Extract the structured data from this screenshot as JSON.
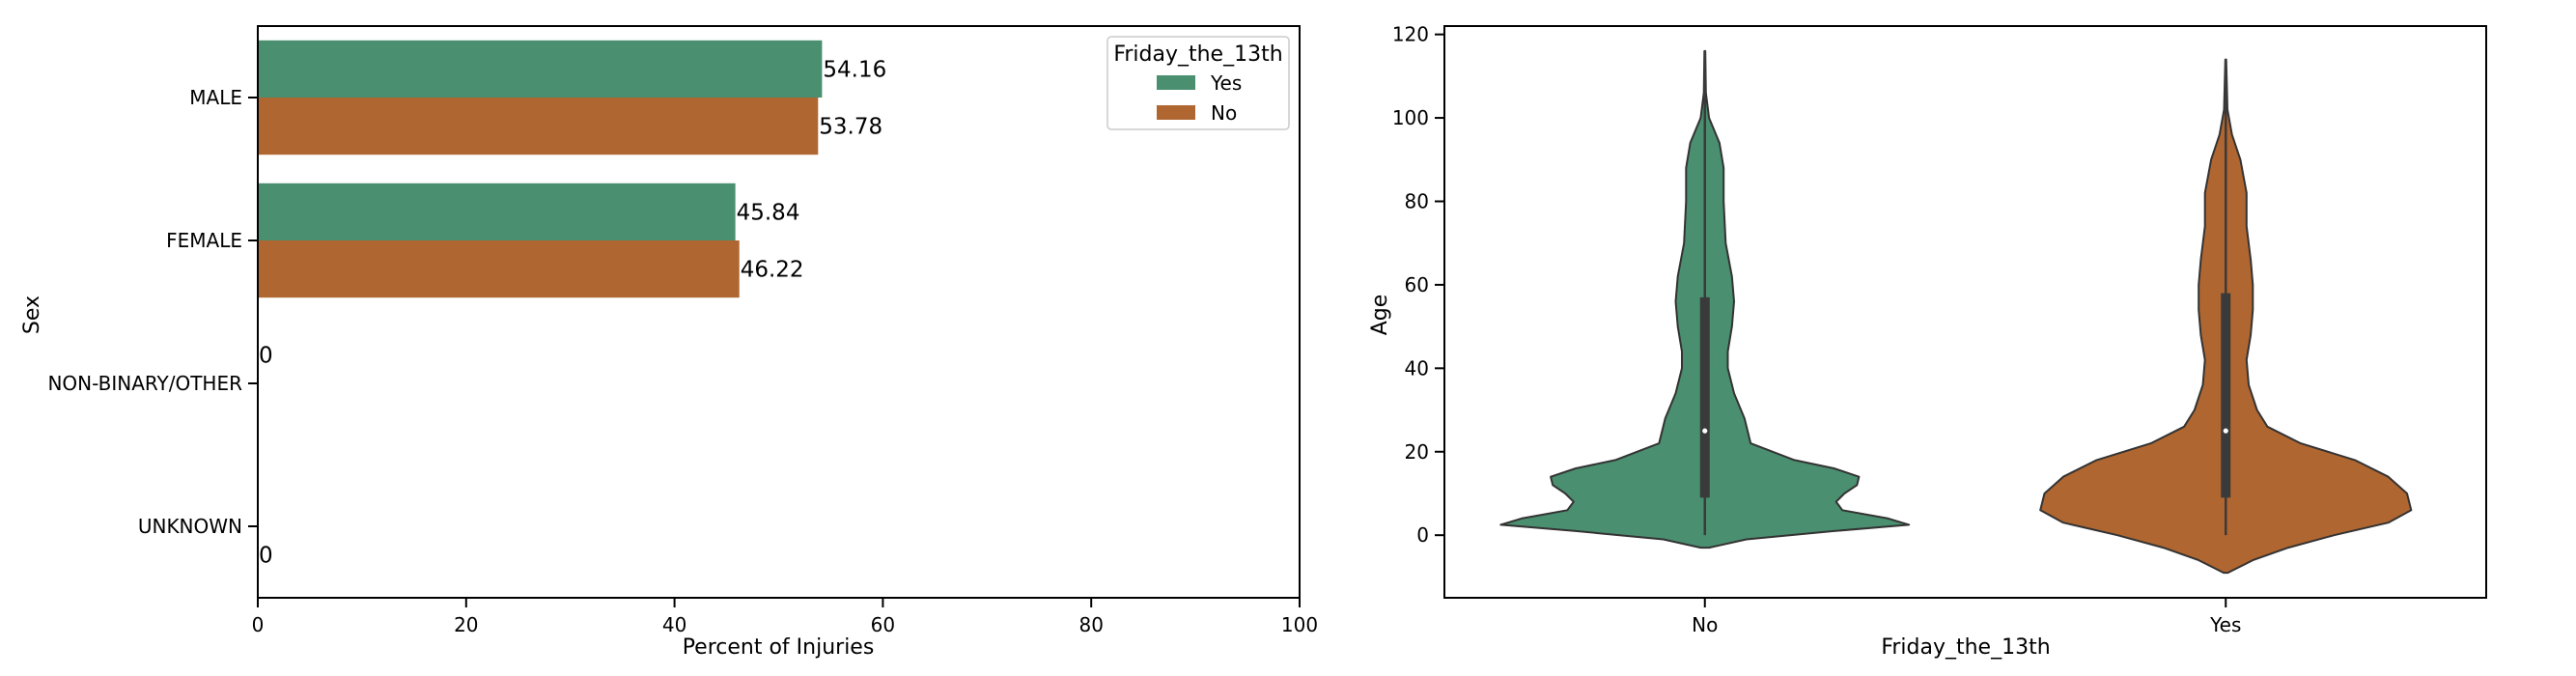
{
  "chart_data": [
    {
      "type": "bar",
      "orientation": "horizontal",
      "categories": [
        "MALE",
        "FEMALE",
        "NON-BINARY/OTHER",
        "UNKNOWN"
      ],
      "series": [
        {
          "name": "Yes",
          "values": [
            54.16,
            45.84,
            0,
            null
          ],
          "color": "#4a8f6f"
        },
        {
          "name": "No",
          "values": [
            53.78,
            46.22,
            null,
            0
          ],
          "color": "#b06630"
        }
      ],
      "data_labels": {
        "yes": [
          "54.16",
          "45.84",
          "0",
          ""
        ],
        "no": [
          "53.78",
          "46.22",
          "",
          "0"
        ]
      },
      "xlabel": "Percent of Injuries",
      "ylabel": "Sex",
      "xlim": [
        0,
        100
      ],
      "xticks": [
        "0",
        "20",
        "40",
        "60",
        "80",
        "100"
      ],
      "legend": {
        "title": "Friday_the_13th",
        "placement": "top-right",
        "entries": [
          "Yes",
          "No"
        ]
      },
      "grid": false
    },
    {
      "type": "violin",
      "categories": [
        "No",
        "Yes"
      ],
      "colors": [
        "#4a8f6f",
        "#b06630"
      ],
      "xlabel": "Friday_the_13th",
      "ylabel": "Age",
      "ylim": [
        -15,
        122
      ],
      "yticks": [
        "0",
        "20",
        "40",
        "60",
        "80",
        "100",
        "120"
      ],
      "distributions": [
        {
          "name": "No",
          "box": {
            "q1": 9,
            "median": 25,
            "q3": 57,
            "whisker_low": 0,
            "whisker_high": 116
          },
          "density": [
            [
              -3,
              0.02
            ],
            [
              -1,
              0.2
            ],
            [
              1,
              0.62
            ],
            [
              2.5,
              0.98
            ],
            [
              4,
              0.88
            ],
            [
              6,
              0.66
            ],
            [
              8,
              0.63
            ],
            [
              10,
              0.67
            ],
            [
              12,
              0.73
            ],
            [
              14,
              0.74
            ],
            [
              16,
              0.62
            ],
            [
              18,
              0.43
            ],
            [
              22,
              0.22
            ],
            [
              28,
              0.19
            ],
            [
              34,
              0.14
            ],
            [
              40,
              0.11
            ],
            [
              44,
              0.11
            ],
            [
              50,
              0.13
            ],
            [
              56,
              0.14
            ],
            [
              62,
              0.13
            ],
            [
              70,
              0.1
            ],
            [
              80,
              0.09
            ],
            [
              88,
              0.09
            ],
            [
              94,
              0.07
            ],
            [
              100,
              0.02
            ],
            [
              106,
              0.005
            ],
            [
              116,
              0.002
            ]
          ]
        },
        {
          "name": "Yes",
          "box": {
            "q1": 9,
            "median": 25,
            "q3": 58,
            "whisker_low": 0,
            "whisker_high": 114
          },
          "density": [
            [
              -9,
              0.01
            ],
            [
              -6,
              0.13
            ],
            [
              -3,
              0.3
            ],
            [
              0,
              0.52
            ],
            [
              3,
              0.78
            ],
            [
              6,
              0.89
            ],
            [
              10,
              0.87
            ],
            [
              14,
              0.78
            ],
            [
              18,
              0.62
            ],
            [
              22,
              0.36
            ],
            [
              26,
              0.2
            ],
            [
              30,
              0.15
            ],
            [
              36,
              0.11
            ],
            [
              42,
              0.1
            ],
            [
              48,
              0.12
            ],
            [
              54,
              0.13
            ],
            [
              60,
              0.13
            ],
            [
              66,
              0.12
            ],
            [
              74,
              0.1
            ],
            [
              82,
              0.1
            ],
            [
              90,
              0.07
            ],
            [
              96,
              0.03
            ],
            [
              102,
              0.008
            ],
            [
              114,
              0.002
            ]
          ]
        }
      ],
      "grid": false
    }
  ]
}
